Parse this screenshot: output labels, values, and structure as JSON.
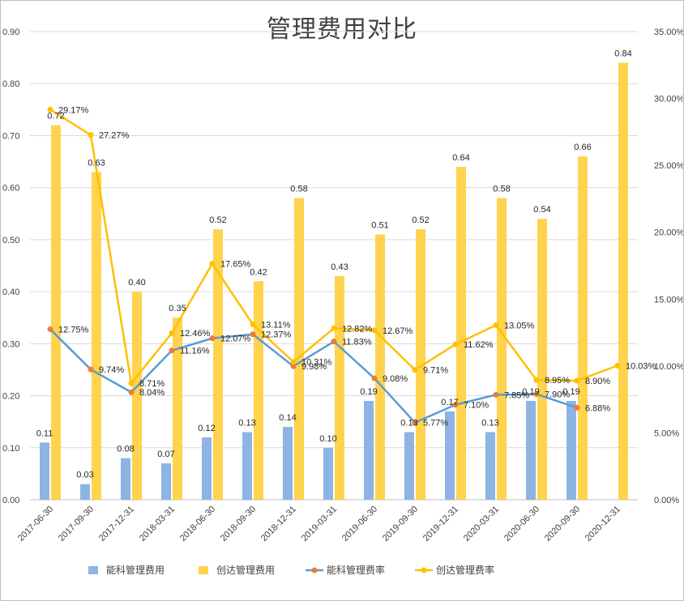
{
  "chart_data": {
    "type": "bar",
    "title": "管理费用对比",
    "categories": [
      "2017-06-30",
      "2017-09-30",
      "2017-12-31",
      "2018-03-31",
      "2018-06-30",
      "2018-09-30",
      "2018-12-31",
      "2019-03-31",
      "2019-06-30",
      "2019-09-30",
      "2019-12-31",
      "2020-03-31",
      "2020-06-30",
      "2020-09-30",
      "2020-12-31"
    ],
    "y_left": {
      "ticks": [
        "0.00",
        "0.10",
        "0.20",
        "0.30",
        "0.40",
        "0.50",
        "0.60",
        "0.70",
        "0.80",
        "0.90"
      ],
      "ylim": [
        0,
        0.9
      ]
    },
    "y_right": {
      "ticks": [
        "0.00%",
        "5.00%",
        "10.00%",
        "15.00%",
        "20.00%",
        "25.00%",
        "30.00%",
        "35.00%"
      ],
      "ylim": [
        0,
        35
      ]
    },
    "grid": true,
    "legend_position": "bottom",
    "series": [
      {
        "name": "能科管理费用",
        "kind": "bar",
        "axis": "left",
        "color": "#8db4e2",
        "values": [
          0.11,
          0.03,
          0.08,
          0.07,
          0.12,
          0.13,
          0.14,
          0.1,
          0.19,
          0.13,
          0.17,
          0.13,
          0.19,
          0.19,
          null
        ],
        "labels": [
          "0.11",
          "0.03",
          "0.08",
          "0.07",
          "0.12",
          "0.13",
          "0.14",
          "0.10",
          "0.19",
          "0.13",
          "0.17",
          "0.13",
          "0.19",
          "0.19",
          ""
        ]
      },
      {
        "name": "创达管理费用",
        "kind": "bar",
        "axis": "left",
        "color": "#ffd34d",
        "values": [
          0.72,
          0.63,
          0.4,
          0.35,
          0.52,
          0.42,
          0.58,
          0.43,
          0.51,
          0.52,
          0.64,
          0.58,
          0.54,
          0.66,
          0.84
        ],
        "labels": [
          "0.72",
          "0.63",
          "0.40",
          "0.35",
          "0.52",
          "0.42",
          "0.58",
          "0.43",
          "0.51",
          "0.52",
          "0.64",
          "0.58",
          "0.54",
          "0.66",
          "0.84"
        ]
      },
      {
        "name": "能科管理费率",
        "kind": "line",
        "axis": "right",
        "color": "#5b9bd5",
        "marker_color": "#ed7d31",
        "values": [
          12.75,
          9.74,
          8.04,
          11.16,
          12.07,
          12.37,
          9.98,
          11.83,
          9.08,
          5.77,
          7.1,
          7.85,
          7.9,
          6.88,
          null
        ],
        "labels": [
          "12.75%",
          "9.74%",
          "8.04%",
          "11.16%",
          "12.07%",
          "12.37%",
          "9.98%",
          "11.83%",
          "9.08%",
          "5.77%",
          "7.10%",
          "7.85%",
          "7.90%",
          "6.88%",
          ""
        ]
      },
      {
        "name": "创达管理费率",
        "kind": "line",
        "axis": "right",
        "color": "#ffc000",
        "marker_color": "#ffc000",
        "values": [
          29.17,
          27.27,
          8.71,
          12.46,
          17.65,
          13.11,
          10.31,
          12.82,
          12.67,
          9.71,
          11.62,
          13.05,
          8.95,
          8.9,
          10.03
        ],
        "labels": [
          "29.17%",
          "27.27%",
          "8.71%",
          "12.46%",
          "17.65%",
          "13.11%",
          "10.31%",
          "12.82%",
          "12.67%",
          "9.71%",
          "11.62%",
          "13.05%",
          "8.95%",
          "8.90%",
          "10.03%"
        ]
      }
    ]
  }
}
